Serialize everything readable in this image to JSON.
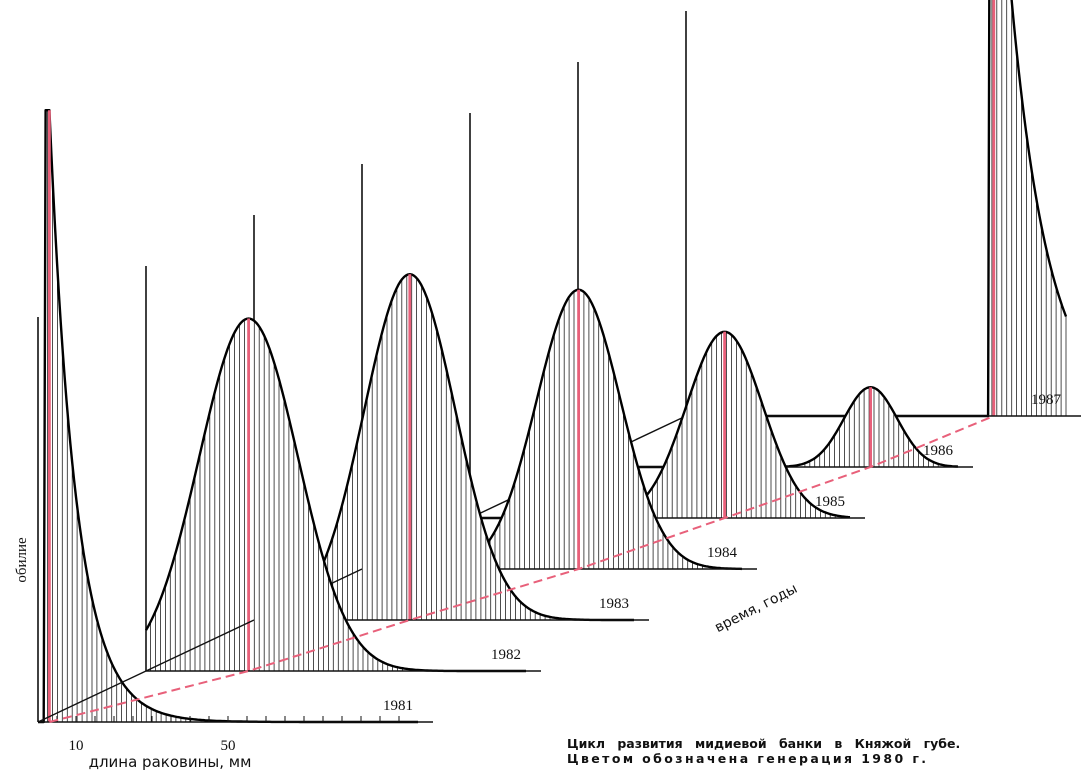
{
  "chart_data": {
    "type": "area",
    "title": "",
    "xlabel": "длина раковины, мм",
    "ylabel": "обилие",
    "zlabel": "время, годы",
    "x_ticks": [
      {
        "value": 10,
        "label": "10"
      },
      {
        "value": 50,
        "label": "50"
      }
    ],
    "xlim": [
      0,
      100
    ],
    "ylim": [
      0,
      1
    ],
    "highlight_color": "#e8607a",
    "curve_color": "#000000",
    "series": [
      {
        "name": "1981",
        "modes": [
          {
            "x": 3,
            "y": 0.92,
            "w": 0.5,
            "decay": 7
          }
        ],
        "highlight_x": 3
      },
      {
        "name": "1982",
        "modes": [
          {
            "x": 27,
            "y": 0.53,
            "w": 13
          }
        ],
        "highlight_x": 27
      },
      {
        "name": "1983",
        "modes": [
          {
            "x": 41,
            "y": 0.52,
            "w": 12
          }
        ],
        "highlight_x": 41
      },
      {
        "name": "1984",
        "modes": [
          {
            "x": 57,
            "y": 0.42,
            "w": 11
          }
        ],
        "highlight_x": 57
      },
      {
        "name": "1985",
        "modes": [
          {
            "x": 67,
            "y": 0.28,
            "w": 10
          }
        ],
        "highlight_x": 67
      },
      {
        "name": "1986",
        "modes": [
          {
            "x": 77,
            "y": 0.12,
            "w": 7
          }
        ],
        "highlight_x": 77
      },
      {
        "name": "1987",
        "modes": [
          {
            "x": 81,
            "y": 1.0,
            "w": 0.3,
            "decay": 10
          }
        ],
        "highlight_x": 81
      }
    ]
  },
  "caption": {
    "line1": "Цикл развития мидиевой банки в Княжой губе.",
    "line2": "Цветом обозначена генерация 1980 г."
  }
}
